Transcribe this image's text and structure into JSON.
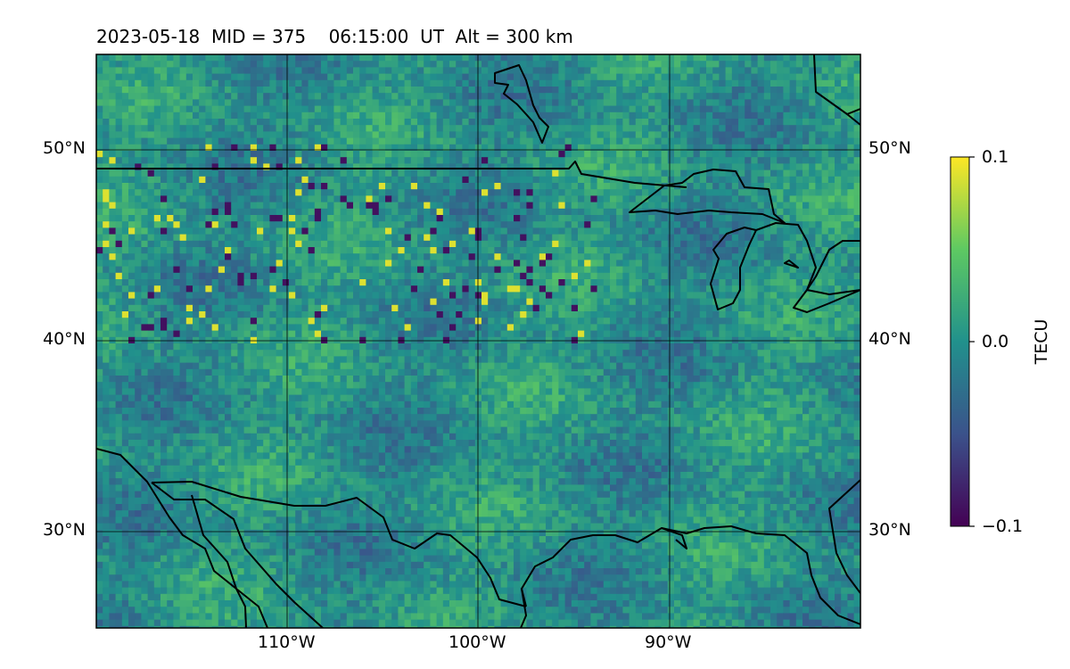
{
  "title": "2023-05-18  MID = 375    06:15:00  UT  Alt = 300 km",
  "map": {
    "extent": {
      "lon": [
        -120,
        -80
      ],
      "lat": [
        25,
        55
      ]
    },
    "gridlines": {
      "lon": [
        -110,
        -100,
        -90
      ],
      "lat": [
        30,
        40,
        50
      ]
    },
    "lon_tick_labels": [
      "110°W",
      "100°W",
      "90°W"
    ],
    "lat_tick_labels_left": [
      "50°N",
      "40°N",
      "30°N"
    ],
    "lat_tick_labels_right": [
      "50°N",
      "40°N",
      "30°N"
    ],
    "field": "ionospheric TEC perturbation",
    "colormap": "viridis"
  },
  "colorbar": {
    "label": "TECU",
    "ticks": [
      "0.1",
      "0.0",
      "−0.1"
    ],
    "range": [
      -0.1,
      0.1
    ],
    "colors": [
      "#440154",
      "#3b528b",
      "#21918c",
      "#5ec962",
      "#fde725"
    ]
  }
}
